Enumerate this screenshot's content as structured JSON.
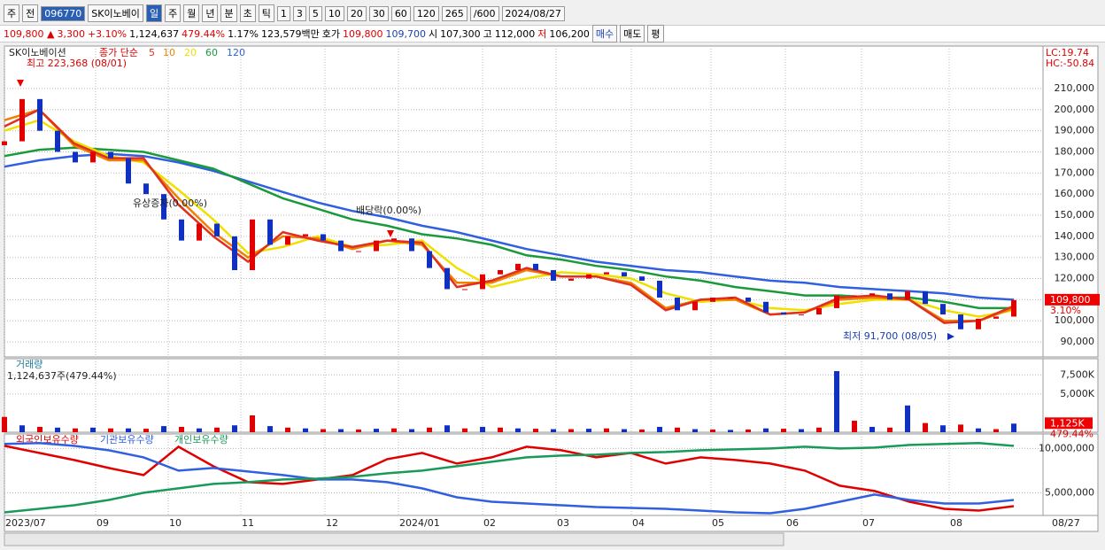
{
  "toolbar": {
    "row1": [
      "주",
      "전",
      "096770",
      "SK이노베이",
      "일",
      "주",
      "월",
      "년",
      "분",
      "초",
      "틱",
      "1",
      "3",
      "5",
      "10",
      "20",
      "30",
      "60",
      "120",
      "265",
      "/600",
      "2024/08/27"
    ],
    "row2": [
      "109,800 ▲",
      "3,300",
      "+3.10%",
      "1,124,637",
      "479.44%",
      "1.17%",
      "123,579백만",
      "호가",
      "109,800",
      "109,700",
      "시",
      "107,300",
      "고",
      "112,000",
      "저",
      "106,200",
      "매수",
      "매도",
      "평"
    ]
  },
  "x_labels": [
    "2023/07",
    "09",
    "10",
    "11",
    "12",
    "2024/01",
    "02",
    "03",
    "04",
    "05",
    "06",
    "07",
    "08",
    "08/27"
  ],
  "chart_data": [
    {
      "type": "candlestick",
      "name": "SK이노베이션",
      "label": "종가 단순",
      "color_up": "#e00000",
      "color_down": "#1030c0",
      "values": [
        185000,
        205000,
        190000,
        180000,
        175000,
        180000,
        177000,
        165000,
        160000,
        148000,
        138000,
        146000,
        140000,
        124000,
        148000,
        136000,
        140000,
        141000,
        138000,
        133000,
        133000,
        138000,
        139000,
        133000,
        125000,
        115000,
        115000,
        122000,
        124000,
        127000,
        124000,
        119000,
        120000,
        122000,
        123000,
        121000,
        119000,
        111000,
        105000,
        109000,
        111000,
        111000,
        109000,
        104000,
        103000,
        103000,
        106000,
        112000,
        112000,
        113000,
        110000,
        114000,
        108000,
        103000,
        96000,
        101000,
        102000,
        109800
      ],
      "series": [
        {
          "name": "5",
          "color": "#e03020",
          "values": [
            192000,
            200000,
            184000,
            177000,
            177000,
            155000,
            140000,
            128000,
            142000,
            138000,
            135000,
            138000,
            137000,
            116000,
            119000,
            125000,
            121000,
            121000,
            117000,
            105000,
            110000,
            111000,
            103000,
            104000,
            111000,
            112000,
            110000,
            99000,
            100000,
            107000
          ]
        },
        {
          "name": "10",
          "color": "#f08000",
          "values": [
            195000,
            200000,
            183000,
            176000,
            176000,
            158000,
            142000,
            130000,
            140000,
            139000,
            134000,
            138000,
            136000,
            118000,
            118000,
            124000,
            121000,
            121000,
            118000,
            106000,
            110000,
            110000,
            103000,
            104000,
            110000,
            111000,
            110000,
            100000,
            100000,
            106000
          ]
        },
        {
          "name": "20",
          "color": "#f0e000",
          "values": [
            190000,
            195000,
            185000,
            178000,
            175000,
            162000,
            148000,
            132000,
            135000,
            140000,
            135000,
            136000,
            138000,
            125000,
            116000,
            120000,
            123000,
            122000,
            120000,
            113000,
            109000,
            110000,
            106000,
            105000,
            108000,
            110000,
            110000,
            105000,
            102000,
            105000
          ]
        },
        {
          "name": "60",
          "color": "#1a9a3a",
          "values": [
            178000,
            181000,
            182000,
            181000,
            180000,
            176000,
            172000,
            165000,
            158000,
            153000,
            148000,
            145000,
            141000,
            139000,
            136000,
            131000,
            129000,
            126000,
            124000,
            121000,
            119000,
            116000,
            114000,
            112000,
            112000,
            111000,
            111000,
            109000,
            106000,
            106000
          ]
        },
        {
          "name": "120",
          "color": "#3060e0",
          "values": [
            173000,
            176000,
            178000,
            179000,
            178000,
            175000,
            171000,
            166000,
            161000,
            156000,
            152000,
            149000,
            145000,
            142000,
            138000,
            134000,
            131000,
            128000,
            126000,
            124000,
            123000,
            121000,
            119000,
            118000,
            116000,
            115000,
            114000,
            113000,
            111000,
            110000
          ]
        }
      ],
      "ylim": [
        82900,
        230100
      ],
      "yticks": [
        {
          "value": 90000,
          "label": "90,000"
        },
        {
          "value": 100000,
          "label": "100,000"
        },
        {
          "value": 110000,
          "label": "110,000"
        },
        {
          "value": 120000,
          "label": "120,000"
        },
        {
          "value": 130000,
          "label": "130,000"
        },
        {
          "value": 140000,
          "label": "140,000"
        },
        {
          "value": 150000,
          "label": "150,000"
        },
        {
          "value": 160000,
          "label": "160,000"
        },
        {
          "value": 170000,
          "label": "170,000"
        },
        {
          "value": 180000,
          "label": "180,000"
        },
        {
          "value": 190000,
          "label": "190,000"
        },
        {
          "value": 200000,
          "label": "200,000"
        },
        {
          "value": 210000,
          "label": "210,000"
        }
      ],
      "annotations": [
        "최고 223,368 (08/01)",
        "유상증자(0.00%)",
        "배당락(0.00%)",
        "최저 91,700 (08/05)"
      ],
      "corner_labels": [
        "LC:19.74",
        "HC:-50.84"
      ],
      "last_price": {
        "value": 109800,
        "label": "109,800",
        "change": "3.10%"
      }
    },
    {
      "type": "bar",
      "name": "거래량",
      "label": "1,124,637주(479.44%)",
      "color_up": "#e00000",
      "color_down": "#1030c0",
      "values": [
        2000000,
        900000,
        700000,
        600000,
        500000,
        600000,
        500000,
        500000,
        450000,
        800000,
        700000,
        500000,
        600000,
        900000,
        2200000,
        800000,
        600000,
        500000,
        400000,
        400000,
        350000,
        450000,
        500000,
        400000,
        600000,
        900000,
        500000,
        700000,
        600000,
        500000,
        450000,
        400000,
        400000,
        450000,
        500000,
        400000,
        350000,
        700000,
        600000,
        400000,
        350000,
        300000,
        350000,
        500000,
        450000,
        400000,
        600000,
        8000000,
        1500000,
        700000,
        600000,
        3500000,
        1200000,
        900000,
        1000000,
        500000,
        400000,
        1124637
      ],
      "ylim": [
        0,
        9625000
      ],
      "yticks": [
        {
          "value": 5000000,
          "label": "5,000K"
        },
        {
          "value": 7500000,
          "label": "7,500K"
        }
      ],
      "last_value": {
        "value": 1125000,
        "label": "1,125K",
        "change": "479.44%"
      }
    },
    {
      "type": "line",
      "series": [
        {
          "name": "외국인보유수량",
          "color": "#e00000",
          "values": [
            10300000,
            9500000,
            8700000,
            7800000,
            7000000,
            10200000,
            8000000,
            6200000,
            6000000,
            6500000,
            7000000,
            8800000,
            9500000,
            8300000,
            9000000,
            10200000,
            9800000,
            9000000,
            9500000,
            8300000,
            9000000,
            8700000,
            8300000,
            7500000,
            5800000,
            5200000,
            4000000,
            3200000,
            3000000,
            3500000
          ]
        },
        {
          "name": "기관보유수량",
          "color": "#3060e0",
          "values": [
            10500000,
            10600000,
            10300000,
            9800000,
            9000000,
            7500000,
            7800000,
            7400000,
            7000000,
            6500000,
            6500000,
            6200000,
            5500000,
            4500000,
            4000000,
            3800000,
            3600000,
            3400000,
            3300000,
            3200000,
            3000000,
            2800000,
            2700000,
            3200000,
            4000000,
            4800000,
            4200000,
            3800000,
            3800000,
            4200000
          ]
        },
        {
          "name": "개인보유수량",
          "color": "#1a9a5a",
          "values": [
            2800000,
            3200000,
            3600000,
            4200000,
            5000000,
            5500000,
            6000000,
            6200000,
            6500000,
            6600000,
            6800000,
            7200000,
            7500000,
            8000000,
            8500000,
            9000000,
            9200000,
            9300000,
            9500000,
            9600000,
            9800000,
            9900000,
            10000000,
            10200000,
            10000000,
            10100000,
            10400000,
            10500000,
            10600000,
            10300000
          ]
        }
      ],
      "ylim": [
        2449000,
        11633000
      ],
      "yticks": [
        {
          "value": 5000000,
          "label": "5,000,000"
        },
        {
          "value": 10000000,
          "label": "10,000,000"
        }
      ]
    }
  ]
}
